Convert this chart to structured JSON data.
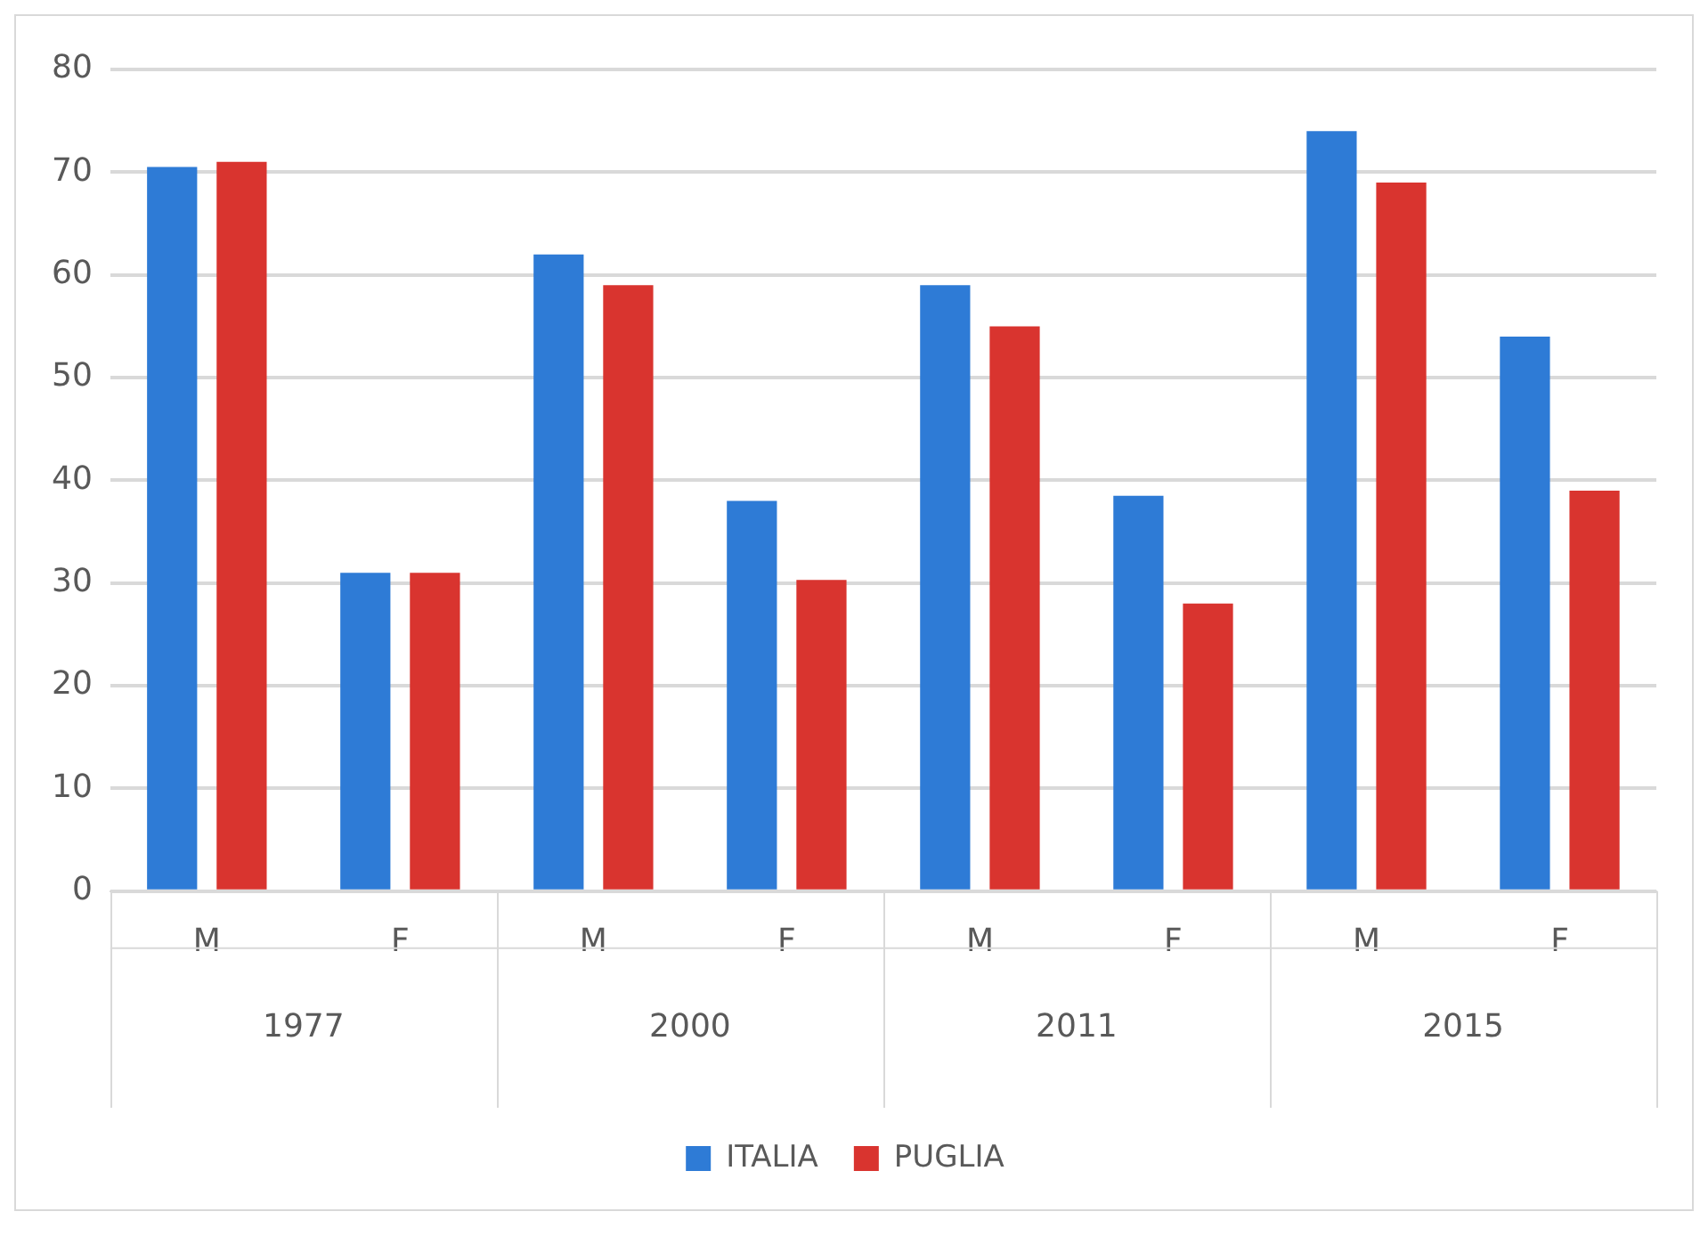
{
  "chart_data": {
    "type": "bar",
    "categories": [
      "M",
      "F",
      "M",
      "F",
      "M",
      "F",
      "M",
      "F"
    ],
    "annotations": [
      "1977",
      "2000",
      "2011",
      "2015"
    ],
    "series": [
      {
        "name": "ITALIA",
        "color": "#2e7bd6",
        "values": [
          70.5,
          31,
          62,
          38,
          59,
          38.5,
          74,
          54
        ]
      },
      {
        "name": "PUGLIA",
        "color": "#d9342f",
        "values": [
          71,
          31,
          59,
          30.3,
          55,
          28,
          69,
          39
        ]
      }
    ],
    "ylim": [
      0,
      80
    ],
    "yticks": [
      0,
      10,
      20,
      30,
      40,
      50,
      60,
      70,
      80
    ],
    "grid": "y",
    "legend": "bottom"
  }
}
